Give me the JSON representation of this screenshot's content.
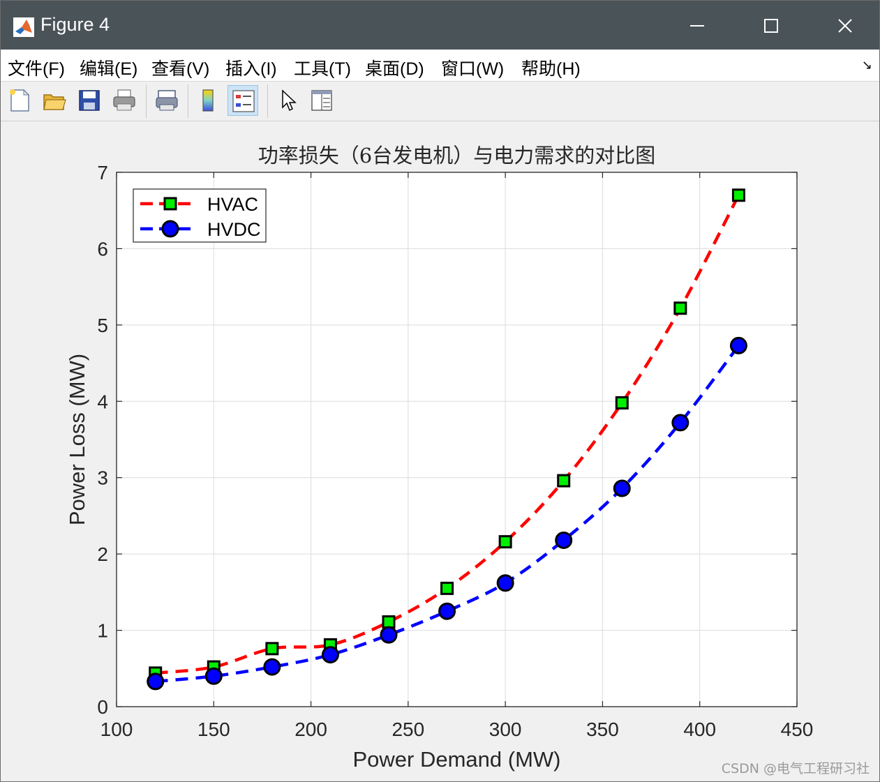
{
  "window": {
    "title": "Figure 4",
    "minimize_icon": "minimize-icon",
    "maximize_icon": "maximize-icon",
    "close_icon": "close-icon"
  },
  "menubar": {
    "items": [
      {
        "label": "文件(F)"
      },
      {
        "label": "编辑(E)"
      },
      {
        "label": "查看(V)"
      },
      {
        "label": "插入(I)"
      },
      {
        "label": "工具(T)"
      },
      {
        "label": "桌面(D)"
      },
      {
        "label": "窗口(W)"
      },
      {
        "label": "帮助(H)"
      }
    ],
    "dock_icon": "dock-arrow-icon"
  },
  "toolbar": {
    "buttons": [
      {
        "icon": "new-figure-icon"
      },
      {
        "icon": "open-file-icon"
      },
      {
        "icon": "save-icon"
      },
      {
        "icon": "print-icon"
      },
      {
        "icon": "link-plot-icon"
      },
      {
        "icon": "colorbar-icon"
      },
      {
        "icon": "legend-icon",
        "active": true
      },
      {
        "icon": "edit-plot-cursor-icon"
      },
      {
        "icon": "property-editor-icon"
      }
    ]
  },
  "chart_data": {
    "type": "line",
    "title": "功率损失（6台发电机）与电力需求的对比图",
    "xlabel": "Power Demand (MW)",
    "ylabel": "Power Loss (MW)",
    "xlim": [
      100,
      450
    ],
    "ylim": [
      0,
      7
    ],
    "xticks": [
      100,
      150,
      200,
      250,
      300,
      350,
      400,
      450
    ],
    "yticks": [
      0,
      1,
      2,
      3,
      4,
      5,
      6,
      7
    ],
    "grid": true,
    "legend_position": "top-left",
    "x": [
      120,
      150,
      180,
      210,
      240,
      270,
      300,
      330,
      360,
      390,
      420
    ],
    "series": [
      {
        "name": "HVAC",
        "line_color": "#ff0000",
        "marker": "square",
        "marker_face": "#00ee00",
        "marker_edge": "#000000",
        "values": [
          0.44,
          0.52,
          0.76,
          0.81,
          1.11,
          1.55,
          2.16,
          2.96,
          3.98,
          5.22,
          6.7
        ]
      },
      {
        "name": "HVDC",
        "line_color": "#0000ff",
        "marker": "circle",
        "marker_face": "#0000ff",
        "marker_edge": "#000000",
        "values": [
          0.33,
          0.4,
          0.52,
          0.68,
          0.94,
          1.25,
          1.62,
          2.18,
          2.86,
          3.72,
          4.73
        ]
      }
    ]
  },
  "watermark": "CSDN @电气工程研习社"
}
